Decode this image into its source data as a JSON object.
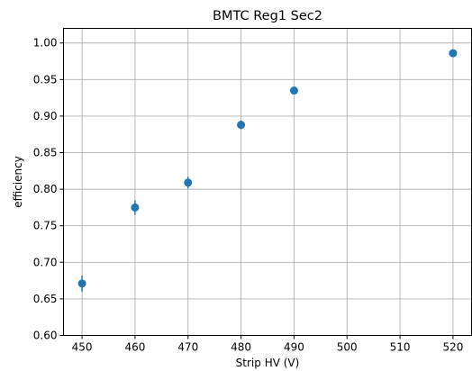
{
  "chart_data": {
    "type": "scatter",
    "title": "BMTC Reg1 Sec2",
    "xlabel": "Strip HV (V)",
    "ylabel": "efficiency",
    "xlim": [
      446.5,
      523.5
    ],
    "ylim": [
      0.6,
      1.02
    ],
    "xticks": [
      450,
      460,
      470,
      480,
      490,
      500,
      510,
      520
    ],
    "xtick_labels": [
      "450",
      "460",
      "470",
      "480",
      "490",
      "500",
      "510",
      "520"
    ],
    "yticks": [
      0.6,
      0.65,
      0.7,
      0.75,
      0.8,
      0.85,
      0.9,
      0.95,
      1.0
    ],
    "ytick_labels": [
      "0.60",
      "0.65",
      "0.70",
      "0.75",
      "0.80",
      "0.85",
      "0.90",
      "0.95",
      "1.00"
    ],
    "grid": true,
    "marker_color": "#1f77b4",
    "points": [
      {
        "x": 450,
        "y": 0.671,
        "err": 0.011
      },
      {
        "x": 460,
        "y": 0.775,
        "err": 0.01
      },
      {
        "x": 470,
        "y": 0.809,
        "err": 0.008
      },
      {
        "x": 480,
        "y": 0.888,
        "err": 0.006
      },
      {
        "x": 490,
        "y": 0.935,
        "err": 0.004
      },
      {
        "x": 520,
        "y": 0.986,
        "err": 0.002
      }
    ]
  }
}
